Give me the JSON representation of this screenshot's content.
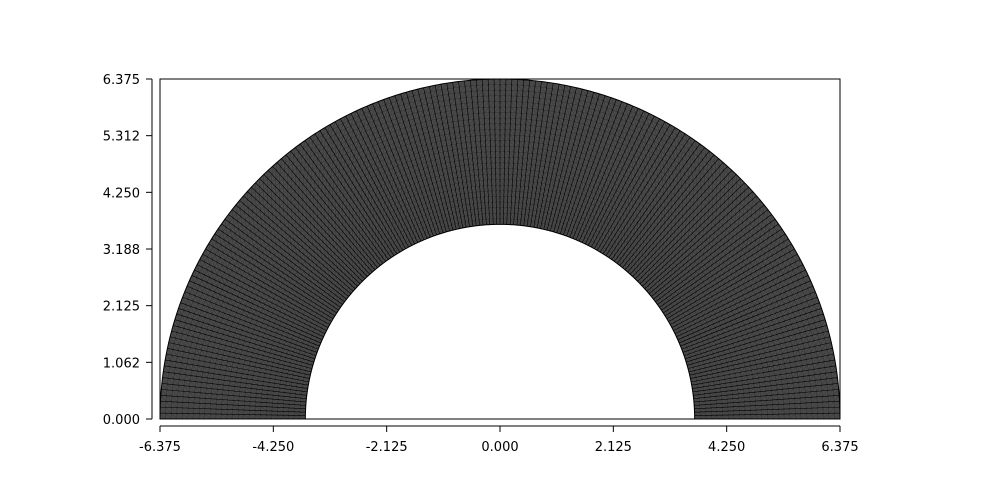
{
  "chart_data": {
    "type": "mesh",
    "title": "",
    "xlabel": "",
    "ylabel": "",
    "xlim": [
      -6.375,
      6.375
    ],
    "ylim": [
      0.0,
      6.375
    ],
    "x_ticks": [
      "-6.375",
      "-4.250",
      "-2.125",
      "0.000",
      "2.125",
      "4.250",
      "6.375"
    ],
    "y_ticks": [
      "0.000",
      "1.062",
      "2.125",
      "3.188",
      "4.250",
      "5.312",
      "6.375"
    ],
    "grid": false,
    "legend": "none",
    "shape": {
      "kind": "half-annulus",
      "inner_radius": 3.65,
      "outer_radius": 6.375,
      "center": [
        0.0,
        0.0
      ]
    },
    "mesh": {
      "angular_divisions": 180,
      "radial_divisions": 26
    },
    "colors": {
      "mesh_line": "#000000",
      "mesh_fill": "#4a4a4a",
      "background": "#ffffff",
      "axis": "#000000"
    }
  }
}
